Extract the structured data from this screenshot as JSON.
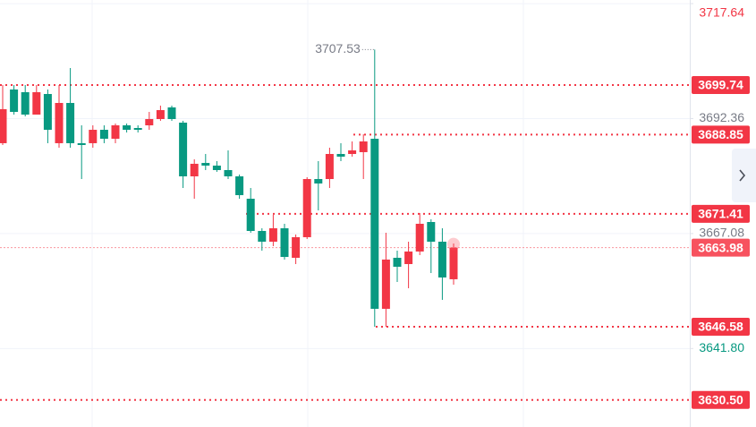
{
  "chart_data": {
    "type": "candlestick",
    "categories": [
      null,
      null,
      null,
      null,
      null,
      null,
      null,
      null,
      null,
      null,
      null,
      null,
      null,
      null,
      null,
      null,
      null,
      null,
      null,
      null,
      null,
      null,
      null,
      null,
      null,
      null,
      null,
      null,
      null,
      null,
      null,
      null,
      null,
      null,
      null,
      null,
      null,
      null,
      null,
      null,
      null
    ],
    "open": [
      3686.95,
      3698.76,
      3698.17,
      3693.24,
      3697.77,
      3686.95,
      3695.8,
      3686.95,
      3686.95,
      3689.9,
      3687.93,
      3690.88,
      3690.29,
      3690.88,
      3692.26,
      3694.82,
      3691.47,
      3679.66,
      3682.61,
      3682.02,
      3681.04,
      3679.66,
      3674.74,
      3667.65,
      3665.29,
      3668.24,
      3661.75,
      3666.28,
      3679.07,
      3679.07,
      3684.58,
      3684.58,
      3684.98,
      3687.93,
      3650.53,
      3661.75,
      3660.37,
      3663.13,
      3669.62,
      3665.29,
      3657.03
    ],
    "high": [
      3699.74,
      3699.74,
      3699.74,
      3699.74,
      3698.76,
      3699.74,
      3703.48,
      3690.88,
      3690.88,
      3690.88,
      3691.28,
      3691.28,
      3690.88,
      3693.83,
      3695.21,
      3695.21,
      3691.87,
      3683.4,
      3684.58,
      3683.01,
      3685.37,
      3680.06,
      3677.1,
      3668.24,
      3671.2,
      3669.23,
      3666.87,
      3679.47,
      3683.01,
      3685.96,
      3686.95,
      3687.34,
      3688.91,
      3707.53,
      3667.26,
      3663.32,
      3665.29,
      3671.59,
      3670.21,
      3668.24,
      3664.9
    ],
    "low": [
      3686.55,
      3693.24,
      3692.85,
      3693.24,
      3686.95,
      3685.96,
      3685.96,
      3679.07,
      3685.96,
      3686.95,
      3686.95,
      3689.31,
      3689.31,
      3689.9,
      3691.87,
      3691.87,
      3677.1,
      3674.74,
      3681.04,
      3680.65,
      3679.07,
      3674.74,
      3667.26,
      3663.32,
      3664.31,
      3661.36,
      3660.37,
      3665.88,
      3672.18,
      3677.1,
      3683.01,
      3683.99,
      3679.07,
      3646.58,
      3646.58,
      3656.43,
      3655.05,
      3662.34,
      3658.4,
      3652.5,
      3655.84
    ],
    "close": [
      3694.43,
      3693.83,
      3693.24,
      3698.17,
      3689.9,
      3695.8,
      3686.95,
      3686.55,
      3689.9,
      3687.93,
      3690.88,
      3689.9,
      3689.9,
      3692.26,
      3694.23,
      3692.26,
      3679.66,
      3682.42,
      3682.02,
      3681.04,
      3679.66,
      3675.53,
      3667.65,
      3665.29,
      3668.24,
      3661.94,
      3666.28,
      3679.07,
      3678.09,
      3684.58,
      3683.99,
      3685.37,
      3687.34,
      3650.53,
      3661.36,
      3659.78,
      3663.13,
      3669.23,
      3665.29,
      3657.42,
      3663.98
    ],
    "up_color": "#f23645",
    "down_color": "#089981",
    "ylim": [
      3624.54,
      3718.44
    ],
    "yticks": [
      3717.64,
      3692.36,
      3667.08,
      {
        "value": 3641.8,
        "label": "3641.80"
      }
    ],
    "ytick_colors": [
      "#f23645",
      "#787b86",
      "#787b86",
      "#089981"
    ],
    "grid": true,
    "price_lines": [
      3699.74,
      3688.85,
      3671.41,
      3646.58,
      {
        "value": 3630.5,
        "label": "3630.50"
      }
    ],
    "price_line_color": "#f23645",
    "last_price_color": "#f7525f"
  }
}
